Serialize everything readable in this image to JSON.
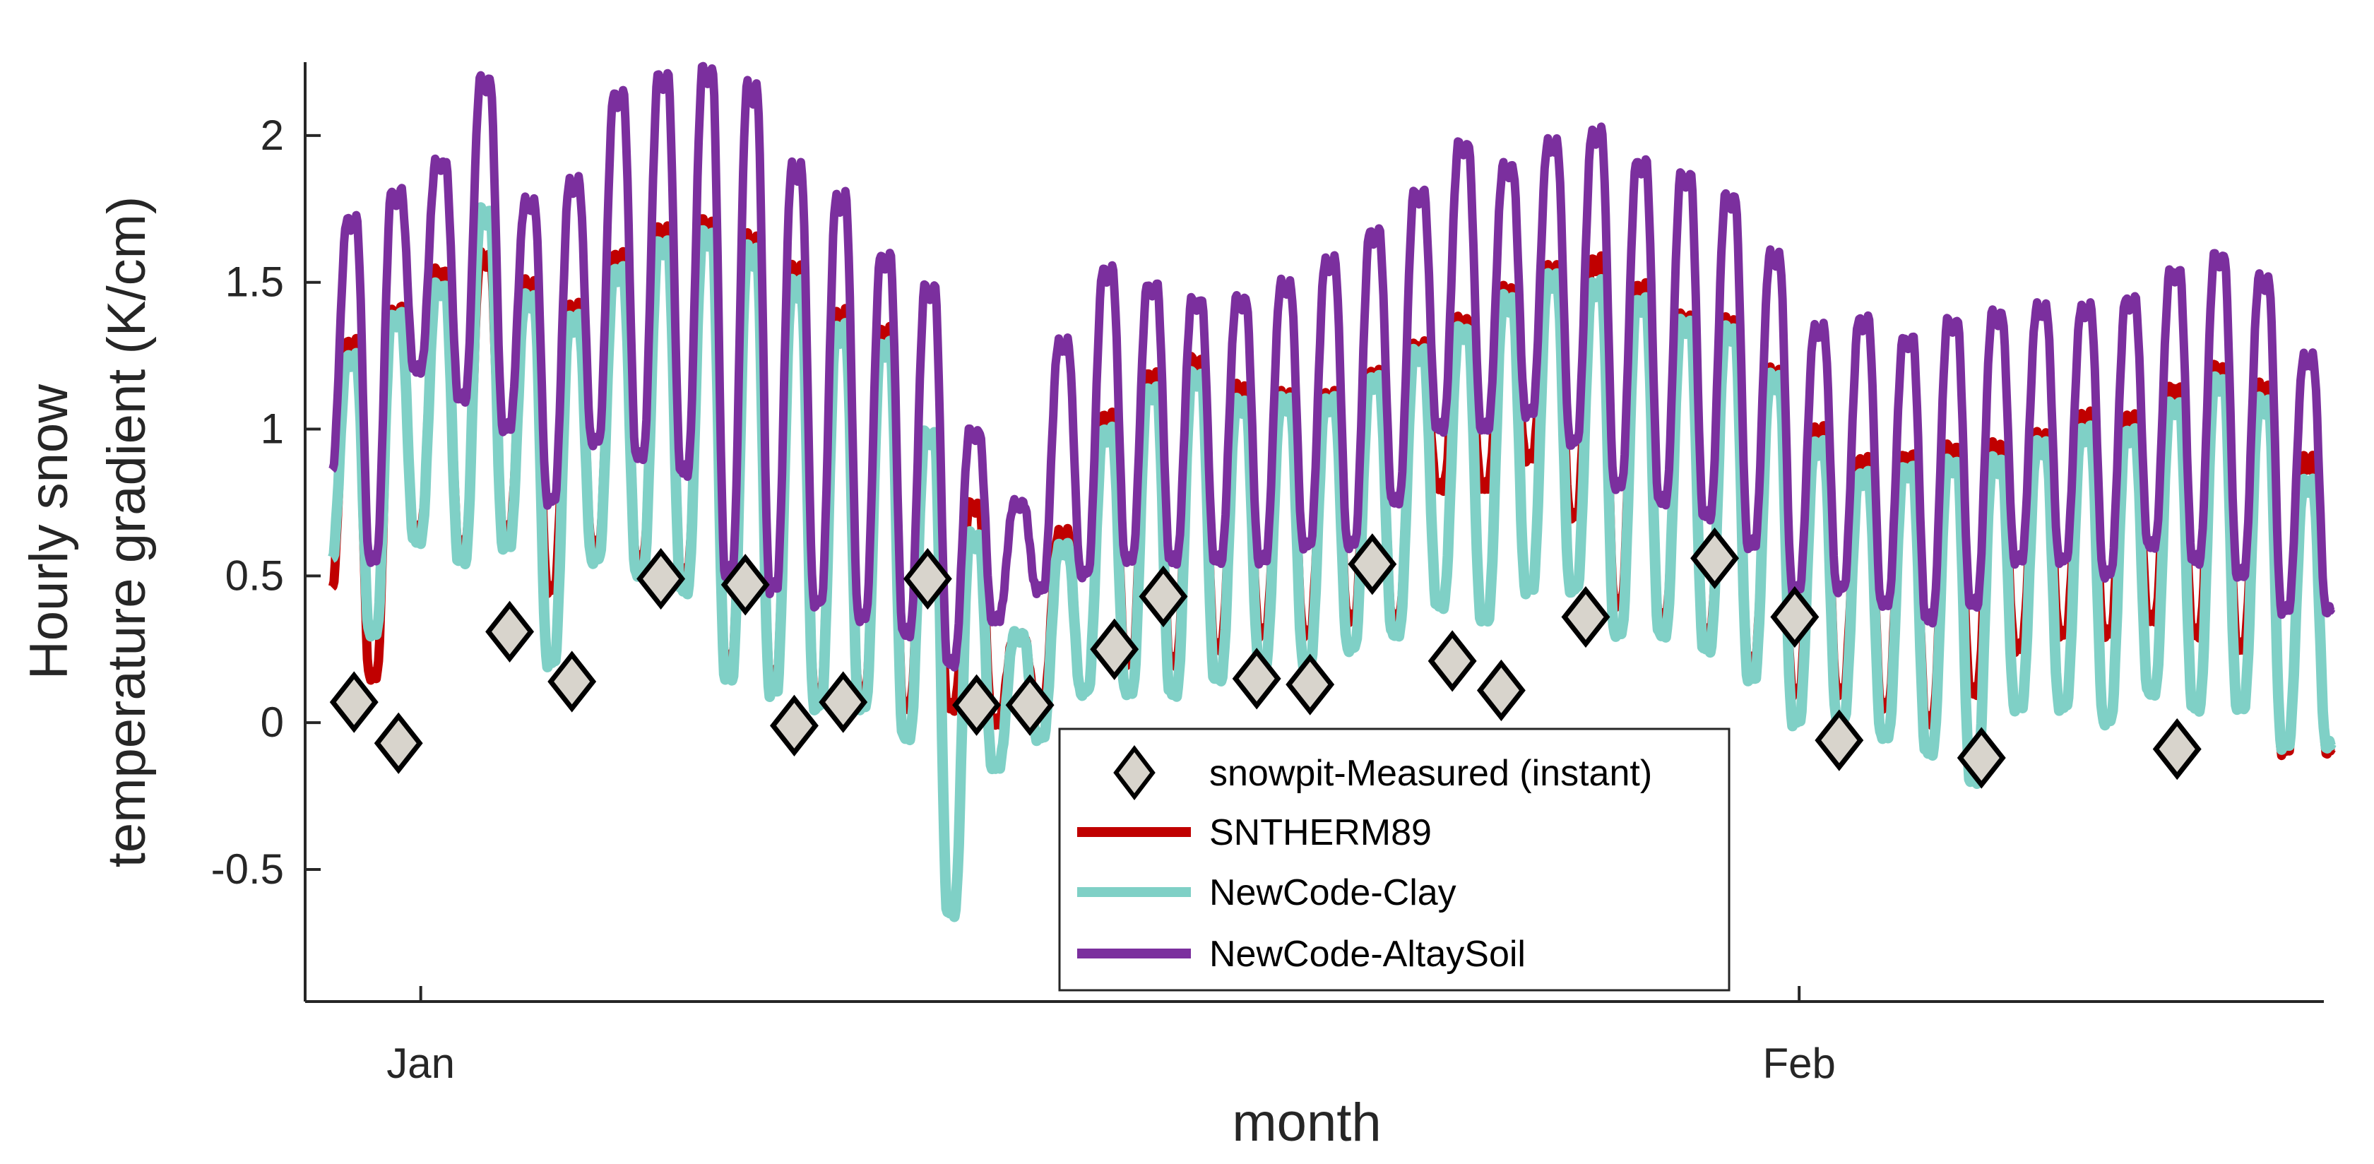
{
  "chart_data": {
    "type": "line",
    "xlabel": "month",
    "ylabel_line1": "Hourly snow",
    "ylabel_line2": "temperature gradient (K/cm)",
    "x_unit": "day offset from Dec 31 (Jan tick = 1, Feb tick = 32)",
    "xlim": [
      -1.6,
      43.8
    ],
    "ylim": [
      -0.95,
      2.25
    ],
    "yticks": [
      -0.5,
      0,
      0.5,
      1,
      1.5,
      2
    ],
    "ytick_labels": [
      "-0.5",
      "0",
      "0.5",
      "1",
      "1.5",
      "2"
    ],
    "xticks": [
      1,
      32
    ],
    "xtick_labels": [
      "Jan",
      "Feb"
    ],
    "legend_position": "bottom-center",
    "series": [
      {
        "name": "snowpit-Measured (instant)",
        "kind": "marker",
        "color": "#d8d4cc",
        "edge": "#000000",
        "x": [
          -0.5,
          0.5,
          3.0,
          4.4,
          6.4,
          8.3,
          9.4,
          10.5,
          12.4,
          13.5,
          14.7,
          16.6,
          17.7,
          19.8,
          21.0,
          22.4,
          24.2,
          25.3,
          27.2,
          30.1,
          31.9,
          32.9,
          36.1,
          40.5
        ],
        "y": [
          0.07,
          -0.07,
          0.31,
          0.14,
          0.49,
          0.47,
          -0.01,
          0.07,
          0.49,
          0.06,
          0.06,
          0.25,
          0.43,
          0.15,
          0.13,
          0.54,
          0.21,
          0.11,
          0.36,
          0.56,
          0.36,
          -0.06,
          -0.12,
          -0.09
        ]
      },
      {
        "name": "SNTHERM89",
        "kind": "line",
        "color": "#c00000",
        "days": [
          -1,
          0,
          1,
          2,
          3,
          4,
          5,
          6,
          7,
          8,
          9,
          10,
          11,
          12,
          13,
          14,
          15,
          16,
          17,
          18,
          19,
          20,
          21,
          22,
          23,
          24,
          25,
          26,
          27,
          28,
          29,
          30,
          31,
          32,
          33,
          34,
          35,
          36,
          37,
          38,
          39,
          40,
          41,
          42,
          43
        ],
        "daily_max": [
          1.3,
          1.42,
          1.55,
          1.6,
          1.5,
          1.42,
          1.6,
          1.7,
          1.72,
          1.66,
          1.55,
          1.4,
          1.35,
          1.0,
          0.75,
          0.3,
          0.65,
          1.05,
          1.2,
          1.25,
          1.15,
          1.12,
          1.12,
          1.2,
          1.3,
          1.38,
          1.48,
          1.55,
          1.58,
          1.5,
          1.4,
          1.38,
          1.2,
          1.0,
          0.9,
          0.92,
          0.95,
          0.95,
          0.98,
          1.05,
          1.05,
          1.15,
          1.22,
          1.15,
          0.9
        ],
        "daily_min": [
          0.45,
          0.15,
          0.65,
          0.6,
          0.65,
          0.45,
          0.6,
          0.55,
          0.5,
          0.2,
          0.15,
          0.1,
          0.1,
          0.05,
          0.05,
          0.0,
          0.05,
          0.1,
          0.2,
          0.2,
          0.25,
          0.3,
          0.3,
          0.35,
          0.35,
          0.8,
          0.8,
          0.9,
          0.7,
          0.4,
          0.35,
          0.3,
          0.2,
          0.1,
          0.1,
          0.05,
          0.0,
          0.1,
          0.25,
          0.3,
          0.3,
          0.35,
          0.3,
          0.25,
          -0.1
        ]
      },
      {
        "name": "NewCode-Clay",
        "kind": "line",
        "color": "#7fd0c6",
        "days": [
          -1,
          0,
          1,
          2,
          3,
          4,
          5,
          6,
          7,
          8,
          9,
          10,
          11,
          12,
          13,
          14,
          15,
          16,
          17,
          18,
          19,
          20,
          21,
          22,
          23,
          24,
          25,
          26,
          27,
          28,
          29,
          30,
          31,
          32,
          33,
          34,
          35,
          36,
          37,
          38,
          39,
          40,
          41,
          42,
          43
        ],
        "daily_max": [
          1.25,
          1.4,
          1.5,
          1.75,
          1.45,
          1.38,
          1.55,
          1.65,
          1.68,
          1.62,
          1.5,
          1.35,
          1.3,
          1.0,
          0.65,
          0.3,
          0.6,
          1.0,
          1.15,
          1.2,
          1.1,
          1.1,
          1.1,
          1.18,
          1.28,
          1.35,
          1.45,
          1.52,
          1.5,
          1.45,
          1.38,
          1.35,
          1.18,
          0.95,
          0.85,
          0.88,
          0.9,
          0.9,
          0.95,
          1.0,
          1.0,
          1.1,
          1.18,
          1.1,
          0.82
        ],
        "daily_min": [
          0.55,
          0.3,
          0.62,
          0.55,
          0.6,
          0.2,
          0.55,
          0.5,
          0.45,
          0.15,
          0.1,
          0.05,
          0.05,
          -0.05,
          -0.65,
          -0.15,
          -0.05,
          0.1,
          0.1,
          0.1,
          0.15,
          0.2,
          0.2,
          0.25,
          0.3,
          0.4,
          0.35,
          0.45,
          0.45,
          0.3,
          0.3,
          0.25,
          0.15,
          0.0,
          0.0,
          -0.05,
          -0.1,
          -0.2,
          0.05,
          0.05,
          0.0,
          0.1,
          0.05,
          0.05,
          -0.08
        ]
      },
      {
        "name": "NewCode-AltaySoil",
        "kind": "line",
        "color": "#7b2f9e",
        "days": [
          -1,
          0,
          1,
          2,
          3,
          4,
          5,
          6,
          7,
          8,
          9,
          10,
          11,
          12,
          13,
          14,
          15,
          16,
          17,
          18,
          19,
          20,
          21,
          22,
          23,
          24,
          25,
          26,
          27,
          28,
          29,
          30,
          31,
          32,
          33,
          34,
          35,
          36,
          37,
          38,
          39,
          40,
          41,
          42,
          43
        ],
        "daily_max": [
          1.72,
          1.82,
          1.92,
          2.2,
          1.78,
          1.85,
          2.15,
          2.22,
          2.24,
          2.18,
          1.9,
          1.8,
          1.6,
          1.5,
          1.0,
          0.75,
          1.3,
          1.55,
          1.5,
          1.45,
          1.45,
          1.5,
          1.58,
          1.68,
          1.82,
          1.98,
          1.9,
          1.98,
          2.02,
          1.92,
          1.88,
          1.8,
          1.6,
          1.35,
          1.38,
          1.32,
          1.38,
          1.4,
          1.42,
          1.42,
          1.45,
          1.55,
          1.6,
          1.52,
          1.25
        ],
        "daily_min": [
          0.85,
          0.55,
          1.2,
          1.1,
          1.0,
          0.75,
          0.95,
          0.9,
          0.85,
          0.5,
          0.45,
          0.4,
          0.35,
          0.3,
          0.2,
          0.35,
          0.45,
          0.5,
          0.55,
          0.55,
          0.55,
          0.55,
          0.6,
          0.6,
          0.75,
          1.0,
          1.0,
          1.05,
          0.95,
          0.8,
          0.75,
          0.7,
          0.6,
          0.45,
          0.45,
          0.4,
          0.35,
          0.4,
          0.55,
          0.55,
          0.5,
          0.6,
          0.55,
          0.5,
          0.38
        ]
      }
    ]
  }
}
